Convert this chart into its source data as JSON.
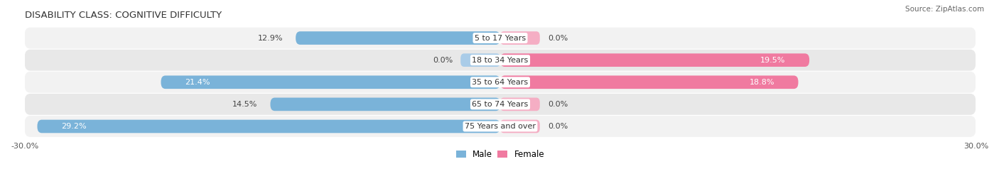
{
  "title": "DISABILITY CLASS: COGNITIVE DIFFICULTY",
  "source": "Source: ZipAtlas.com",
  "categories": [
    "5 to 17 Years",
    "18 to 34 Years",
    "35 to 64 Years",
    "65 to 74 Years",
    "75 Years and over"
  ],
  "male_values": [
    12.9,
    0.0,
    21.4,
    14.5,
    29.2
  ],
  "female_values": [
    0.0,
    19.5,
    18.8,
    0.0,
    0.0
  ],
  "male_color": "#7ab3d9",
  "female_color": "#f07aa0",
  "female_stub_color": "#f5aec4",
  "male_stub_color": "#aacce8",
  "row_bg_colors": [
    "#f2f2f2",
    "#e8e8e8",
    "#f2f2f2",
    "#e8e8e8",
    "#f2f2f2"
  ],
  "max_value": 30.0,
  "title_fontsize": 9.5,
  "label_fontsize": 8,
  "tick_fontsize": 8,
  "background_color": "#ffffff",
  "stub_size": 2.5
}
